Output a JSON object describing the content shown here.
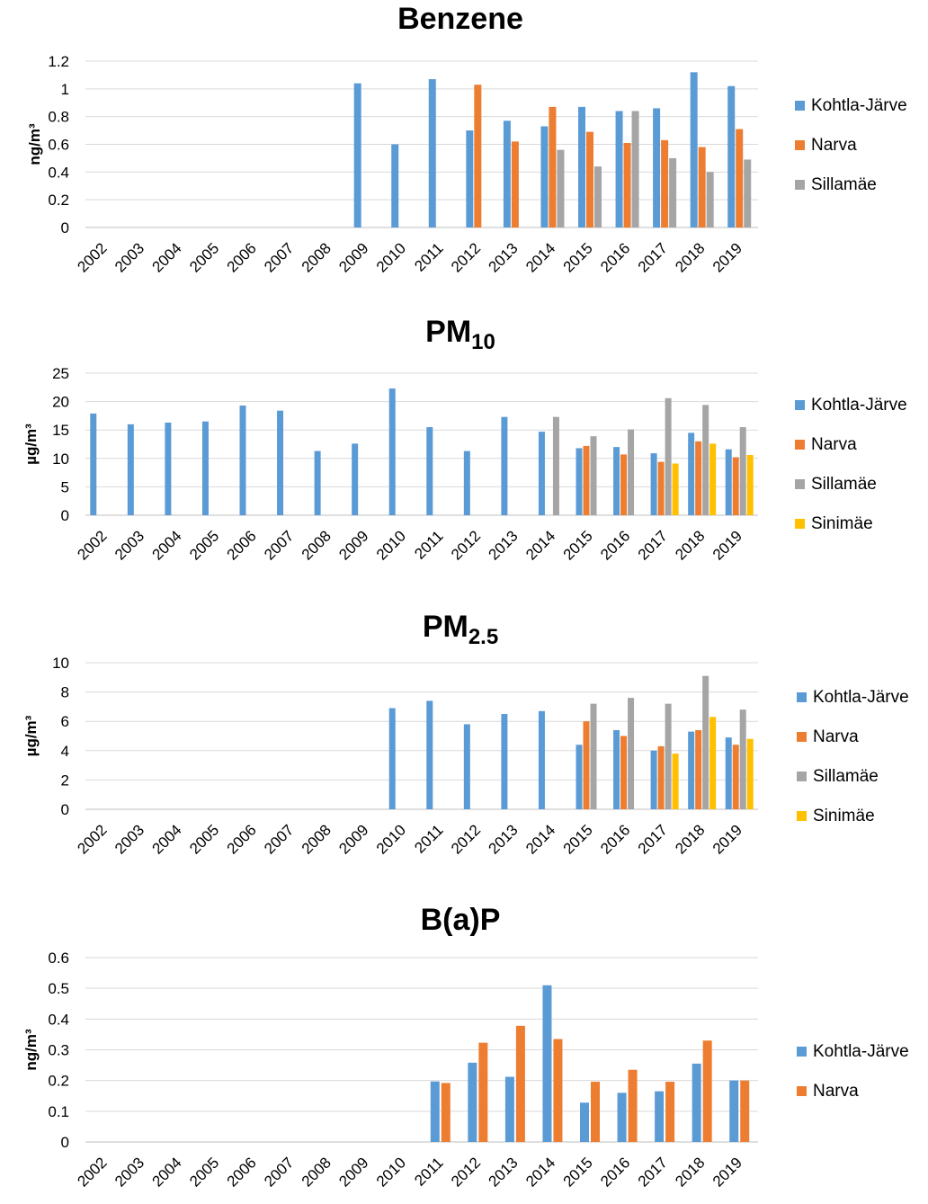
{
  "colors": {
    "Kohtla-Järve": "#5b9bd5",
    "Narva": "#ed7d31",
    "Sillamäe": "#a5a5a5",
    "Sinimäe": "#ffc000",
    "grid": "#d9d9d9",
    "axis": "#bfbfbf"
  },
  "chart_data": [
    {
      "type": "bar",
      "title": "Benzene",
      "title_sub": "",
      "ylabel": "ng/m³",
      "xlabel": "",
      "ylim": [
        0,
        1.2
      ],
      "yticks": [
        0,
        0.2,
        0.4,
        0.6,
        0.8,
        1,
        1.2
      ],
      "grid": true,
      "legend_position": "right",
      "categories": [
        "2002",
        "2003",
        "2004",
        "2005",
        "2006",
        "2007",
        "2008",
        "2009",
        "2010",
        "2011",
        "2012",
        "2013",
        "2014",
        "2015",
        "2016",
        "2017",
        "2018",
        "2019"
      ],
      "series": [
        {
          "name": "Kohtla-Järve",
          "values": [
            null,
            null,
            null,
            null,
            null,
            null,
            null,
            1.04,
            0.6,
            1.07,
            0.7,
            0.77,
            0.73,
            0.87,
            0.84,
            0.86,
            1.12,
            1.02
          ]
        },
        {
          "name": "Narva",
          "values": [
            null,
            null,
            null,
            null,
            null,
            null,
            null,
            null,
            null,
            null,
            1.03,
            0.62,
            0.87,
            0.69,
            0.61,
            0.63,
            0.58,
            0.71
          ]
        },
        {
          "name": "Sillamäe",
          "values": [
            null,
            null,
            null,
            null,
            null,
            null,
            null,
            null,
            null,
            null,
            null,
            null,
            0.56,
            0.44,
            0.84,
            0.5,
            0.4,
            0.49
          ]
        }
      ]
    },
    {
      "type": "bar",
      "title": "PM",
      "title_sub": "10",
      "ylabel": "µg/m³",
      "xlabel": "",
      "ylim": [
        0,
        25
      ],
      "yticks": [
        0,
        5,
        10,
        15,
        20,
        25
      ],
      "grid": true,
      "legend_position": "right",
      "categories": [
        "2002",
        "2003",
        "2004",
        "2005",
        "2006",
        "2007",
        "2008",
        "2009",
        "2010",
        "2011",
        "2012",
        "2013",
        "2014",
        "2015",
        "2016",
        "2017",
        "2018",
        "2019"
      ],
      "series": [
        {
          "name": "Kohtla-Järve",
          "values": [
            17.9,
            16.0,
            16.3,
            16.5,
            19.3,
            18.4,
            11.3,
            12.6,
            22.3,
            15.5,
            11.3,
            17.3,
            14.7,
            11.8,
            12.0,
            10.9,
            14.5,
            11.6
          ]
        },
        {
          "name": "Narva",
          "values": [
            null,
            null,
            null,
            null,
            null,
            null,
            null,
            null,
            null,
            null,
            null,
            null,
            null,
            12.2,
            10.7,
            9.4,
            13.0,
            10.2
          ]
        },
        {
          "name": "Sillamäe",
          "values": [
            null,
            null,
            null,
            null,
            null,
            null,
            null,
            null,
            null,
            null,
            null,
            null,
            17.3,
            13.9,
            15.1,
            20.6,
            19.4,
            15.5
          ]
        },
        {
          "name": "Sinimäe",
          "values": [
            null,
            null,
            null,
            null,
            null,
            null,
            null,
            null,
            null,
            null,
            null,
            null,
            null,
            null,
            null,
            9.1,
            12.6,
            10.6
          ]
        }
      ]
    },
    {
      "type": "bar",
      "title": "PM",
      "title_sub": "2.5",
      "ylabel": "µg/m³",
      "xlabel": "",
      "ylim": [
        0,
        10
      ],
      "yticks": [
        0,
        2,
        4,
        6,
        8,
        10
      ],
      "grid": true,
      "legend_position": "right",
      "categories": [
        "2002",
        "2003",
        "2004",
        "2005",
        "2006",
        "2007",
        "2008",
        "2009",
        "2010",
        "2011",
        "2012",
        "2013",
        "2014",
        "2015",
        "2016",
        "2017",
        "2018",
        "2019"
      ],
      "series": [
        {
          "name": "Kohtla-Järve",
          "values": [
            null,
            null,
            null,
            null,
            null,
            null,
            null,
            null,
            6.9,
            7.4,
            5.8,
            6.5,
            6.7,
            4.4,
            5.4,
            4.0,
            5.3,
            4.9
          ]
        },
        {
          "name": "Narva",
          "values": [
            null,
            null,
            null,
            null,
            null,
            null,
            null,
            null,
            null,
            null,
            null,
            null,
            null,
            6.0,
            5.0,
            4.3,
            5.4,
            4.4
          ]
        },
        {
          "name": "Sillamäe",
          "values": [
            null,
            null,
            null,
            null,
            null,
            null,
            null,
            null,
            null,
            null,
            null,
            null,
            null,
            7.2,
            7.6,
            7.2,
            9.1,
            6.8
          ]
        },
        {
          "name": "Sinimäe",
          "values": [
            null,
            null,
            null,
            null,
            null,
            null,
            null,
            null,
            null,
            null,
            null,
            null,
            null,
            null,
            null,
            3.8,
            6.3,
            4.8
          ]
        }
      ]
    },
    {
      "type": "bar",
      "title": "B(a)P",
      "title_sub": "",
      "ylabel": "ng/m³",
      "xlabel": "",
      "ylim": [
        0,
        0.6
      ],
      "yticks": [
        0,
        0.1,
        0.2,
        0.3,
        0.4,
        0.5,
        0.6
      ],
      "grid": true,
      "legend_position": "right",
      "categories": [
        "2002",
        "2003",
        "2004",
        "2005",
        "2006",
        "2007",
        "2008",
        "2009",
        "2010",
        "2011",
        "2012",
        "2013",
        "2014",
        "2015",
        "2016",
        "2017",
        "2018",
        "2019"
      ],
      "series": [
        {
          "name": "Kohtla-Järve",
          "values": [
            null,
            null,
            null,
            null,
            null,
            null,
            null,
            null,
            null,
            0.197,
            0.258,
            0.212,
            0.51,
            0.128,
            0.16,
            0.165,
            0.255,
            0.2
          ]
        },
        {
          "name": "Narva",
          "values": [
            null,
            null,
            null,
            null,
            null,
            null,
            null,
            null,
            null,
            0.192,
            0.323,
            0.378,
            0.335,
            0.196,
            0.235,
            0.196,
            0.33,
            0.2
          ]
        }
      ]
    }
  ]
}
